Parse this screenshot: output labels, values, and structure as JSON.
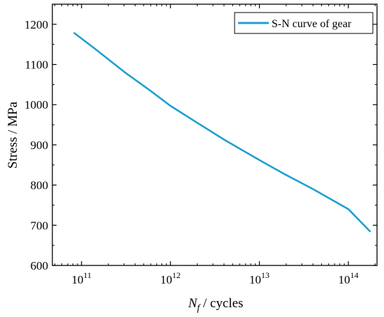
{
  "chart_data": {
    "type": "line",
    "title": "",
    "xlabel_main": "N",
    "xlabel_sub": "f",
    "xlabel_rest": " / cycles",
    "ylabel": "Stress / MPa",
    "x_scale": "log10",
    "xlim": [
      47000000000.0,
      210000000000000.0
    ],
    "ylim": [
      600,
      1250
    ],
    "y_ticks": [
      600,
      700,
      800,
      900,
      1000,
      1100,
      1200
    ],
    "x_ticks": [
      {
        "value": 100000000000.0,
        "base": "10",
        "exp": "11"
      },
      {
        "value": 1000000000000.0,
        "base": "10",
        "exp": "12"
      },
      {
        "value": 10000000000000.0,
        "base": "10",
        "exp": "13"
      },
      {
        "value": 100000000000000.0,
        "base": "10",
        "exp": "14"
      }
    ],
    "legend_position": "top-right",
    "series": [
      {
        "name": "S-N curve of gear",
        "color": "#1f9fd0",
        "x": [
          83000000000.0,
          140000000000.0,
          300000000000.0,
          600000000000.0,
          1000000000000.0,
          2000000000000.0,
          4000000000000.0,
          10000000000000.0,
          20000000000000.0,
          40000000000000.0,
          100000000000000.0,
          175000000000000.0
        ],
        "y": [
          1178,
          1140,
          1082,
          1034,
          997,
          955,
          913,
          862,
          825,
          790,
          740,
          685
        ]
      }
    ]
  }
}
